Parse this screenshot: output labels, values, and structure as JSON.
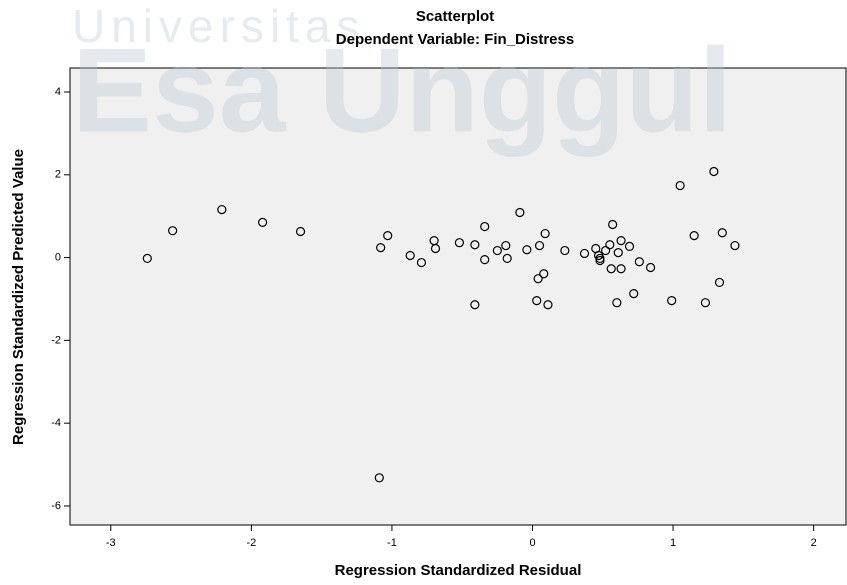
{
  "watermark": {
    "line1": "Universitas",
    "line2": "Esa Unggul"
  },
  "chart_data": {
    "type": "scatter",
    "title": "Scatterplot",
    "subtitle": "Dependent Variable: Fin_Distress",
    "xlabel": "Regression Standardized Residual",
    "ylabel": "Regression Standardized Predicted Value",
    "x": [
      -2.74,
      -2.56,
      -2.21,
      -1.92,
      -1.65,
      -1.08,
      -1.03,
      -1.09,
      -0.87,
      -0.79,
      -0.7,
      -0.69,
      -0.52,
      -0.41,
      -0.41,
      -0.34,
      -0.34,
      -0.25,
      -0.19,
      -0.18,
      -0.09,
      -0.04,
      0.05,
      0.09,
      0.03,
      0.04,
      0.08,
      0.11,
      0.23,
      0.37,
      0.45,
      0.47,
      0.48,
      0.48,
      0.52,
      0.55,
      0.56,
      0.57,
      0.6,
      0.61,
      0.63,
      0.63,
      0.69,
      0.72,
      0.76,
      0.84,
      0.99,
      1.05,
      1.15,
      1.23,
      1.29,
      1.33,
      1.35,
      1.44
    ],
    "values": [
      -0.02,
      0.65,
      1.16,
      0.85,
      0.63,
      0.24,
      0.53,
      -5.32,
      0.05,
      -0.12,
      0.41,
      0.22,
      0.36,
      0.31,
      -1.14,
      -0.05,
      0.75,
      0.17,
      0.29,
      -0.02,
      1.09,
      0.19,
      0.29,
      0.58,
      -1.04,
      -0.51,
      -0.39,
      -1.14,
      0.17,
      0.1,
      0.22,
      0.05,
      -0.02,
      -0.07,
      0.17,
      0.31,
      -0.27,
      0.8,
      -1.09,
      0.12,
      0.41,
      -0.27,
      0.27,
      -0.87,
      -0.1,
      -0.24,
      -1.04,
      1.74,
      0.53,
      -1.09,
      2.08,
      -0.6,
      0.6,
      0.29
    ],
    "xlim": [
      -3.29,
      2.23
    ],
    "ylim": [
      -6.46,
      4.58
    ],
    "xticks": [
      -3,
      -2,
      -1,
      0,
      1,
      2
    ],
    "yticks": [
      -6,
      -4,
      -2,
      0,
      2,
      4
    ],
    "background": "#f0f0f0",
    "marker_color": "#000000",
    "grid": false
  }
}
